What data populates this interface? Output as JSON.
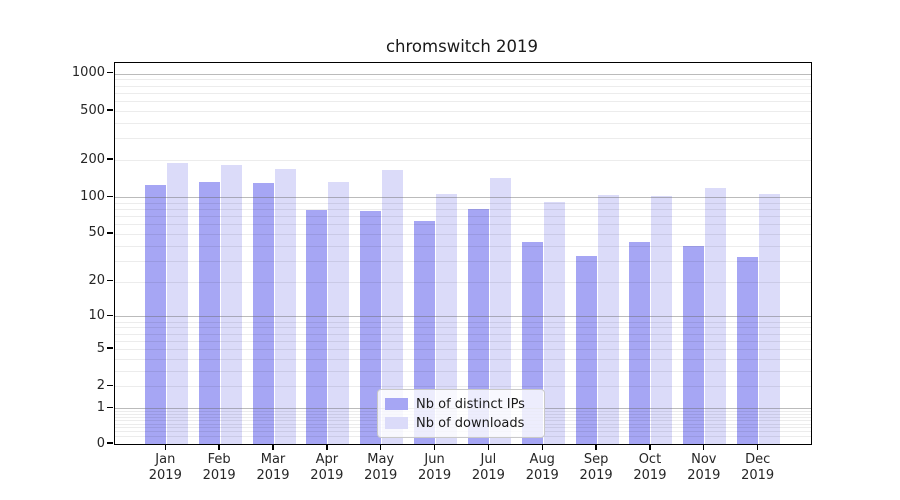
{
  "title": "chromswitch 2019",
  "chart_data": {
    "type": "bar",
    "title": "chromswitch 2019",
    "categories": [
      "Jan",
      "Feb",
      "Mar",
      "Apr",
      "May",
      "Jun",
      "Jul",
      "Aug",
      "Sep",
      "Oct",
      "Nov",
      "Dec"
    ],
    "category_year_line": "2019",
    "series": [
      {
        "name": "Nb of distinct IPs",
        "color": "#a6a6f4",
        "values": [
          126,
          134,
          131,
          78,
          77,
          64,
          80,
          43,
          33,
          43,
          40,
          32
        ]
      },
      {
        "name": "Nb of downloads",
        "color": "#dbdbf9",
        "values": [
          190,
          182,
          170,
          132,
          165,
          107,
          144,
          91,
          105,
          102,
          120,
          107
        ]
      }
    ],
    "xlabel": "",
    "ylabel": "",
    "yscale": "symlog",
    "y_ticks": [
      0,
      1,
      2,
      5,
      10,
      20,
      50,
      100,
      200,
      500,
      1000
    ],
    "ylim": [
      0,
      1150
    ],
    "grid": true,
    "legend_position": "lower center"
  },
  "colors": {
    "axis": "#000000",
    "tick_text": "#262626",
    "major_grid": "#b0b0b0",
    "minor_grid": "#ebebeb",
    "background": "#ffffff"
  }
}
